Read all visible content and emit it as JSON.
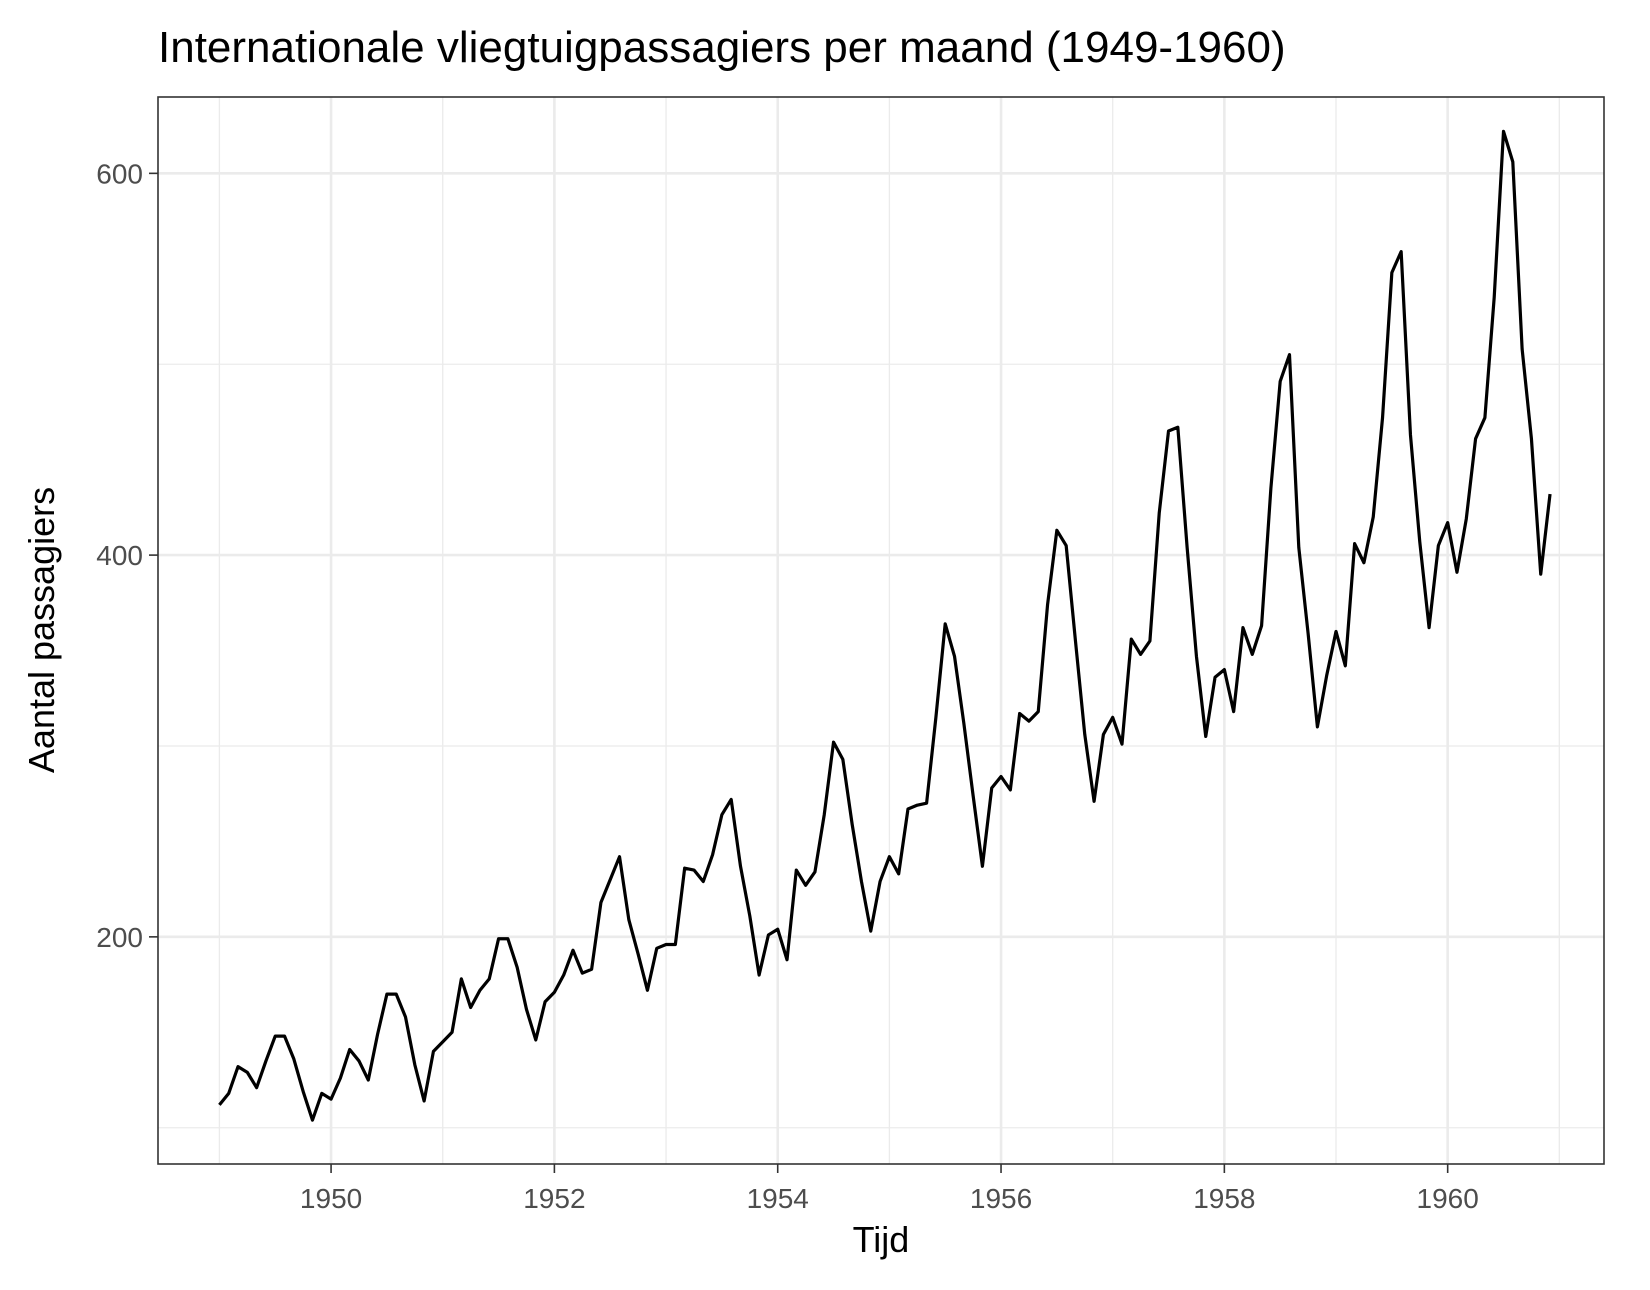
{
  "chart_data": {
    "type": "line",
    "title": "Internationale vliegtuigpassagiers per maand (1949-1960)",
    "xlabel": "Tijd",
    "ylabel": "Aantal passagiers",
    "xlim": [
      1948.45,
      1961.4
    ],
    "ylim": [
      81,
      640
    ],
    "x_ticks": [
      1950,
      1952,
      1954,
      1956,
      1958,
      1960
    ],
    "x_tick_labels": [
      "1950",
      "1952",
      "1954",
      "1956",
      "1958",
      "1960"
    ],
    "x_minor_ticks": [
      1949,
      1951,
      1953,
      1955,
      1957,
      1959,
      1961
    ],
    "y_ticks": [
      200,
      400,
      600
    ],
    "y_tick_labels": [
      "200",
      "400",
      "600"
    ],
    "y_minor_ticks": [
      100,
      300,
      500
    ],
    "grid": true,
    "legend": "none",
    "x_start": 1949,
    "x_step": 0.0833333,
    "series": [
      {
        "color": "#000000",
        "values": [
          112,
          118,
          132,
          129,
          121,
          135,
          148,
          148,
          136,
          119,
          104,
          118,
          115,
          126,
          141,
          135,
          125,
          149,
          170,
          170,
          158,
          133,
          114,
          140,
          145,
          150,
          178,
          163,
          172,
          178,
          199,
          199,
          184,
          162,
          146,
          166,
          171,
          180,
          193,
          181,
          183,
          218,
          230,
          242,
          209,
          191,
          172,
          194,
          196,
          196,
          236,
          235,
          229,
          243,
          264,
          272,
          237,
          211,
          180,
          201,
          204,
          188,
          235,
          227,
          234,
          264,
          302,
          293,
          259,
          229,
          203,
          229,
          242,
          233,
          267,
          269,
          270,
          315,
          364,
          347,
          312,
          274,
          237,
          278,
          284,
          277,
          317,
          313,
          318,
          374,
          413,
          405,
          355,
          306,
          271,
          306,
          315,
          301,
          356,
          348,
          355,
          422,
          465,
          467,
          404,
          347,
          305,
          336,
          340,
          318,
          362,
          348,
          363,
          435,
          491,
          505,
          404,
          359,
          310,
          337,
          360,
          342,
          406,
          396,
          420,
          472,
          548,
          559,
          463,
          407,
          362,
          405,
          417,
          391,
          419,
          461,
          472,
          535,
          622,
          606,
          508,
          461,
          390,
          432
        ]
      }
    ]
  }
}
